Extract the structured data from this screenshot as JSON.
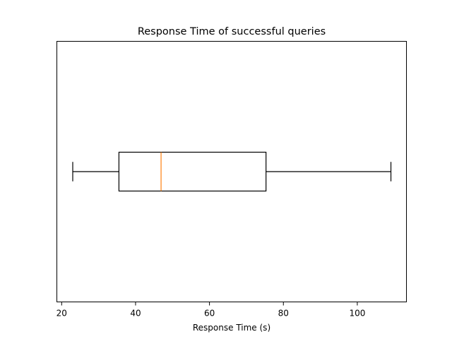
{
  "chart_data": {
    "type": "boxplot",
    "orientation": "horizontal",
    "title": "Response Time of successful queries",
    "xlabel": "Response Time (s)",
    "ylabel": "",
    "xlim": [
      18.7,
      113.3
    ],
    "xticks": [
      20,
      40,
      60,
      80,
      100
    ],
    "grid": false,
    "box": {
      "whisker_low": 23.0,
      "q1": 35.5,
      "median": 46.9,
      "q3": 75.3,
      "whisker_high": 109.1
    },
    "colors": {
      "box": "#000000",
      "median": "#ff7f0e",
      "background": "#ffffff"
    }
  }
}
